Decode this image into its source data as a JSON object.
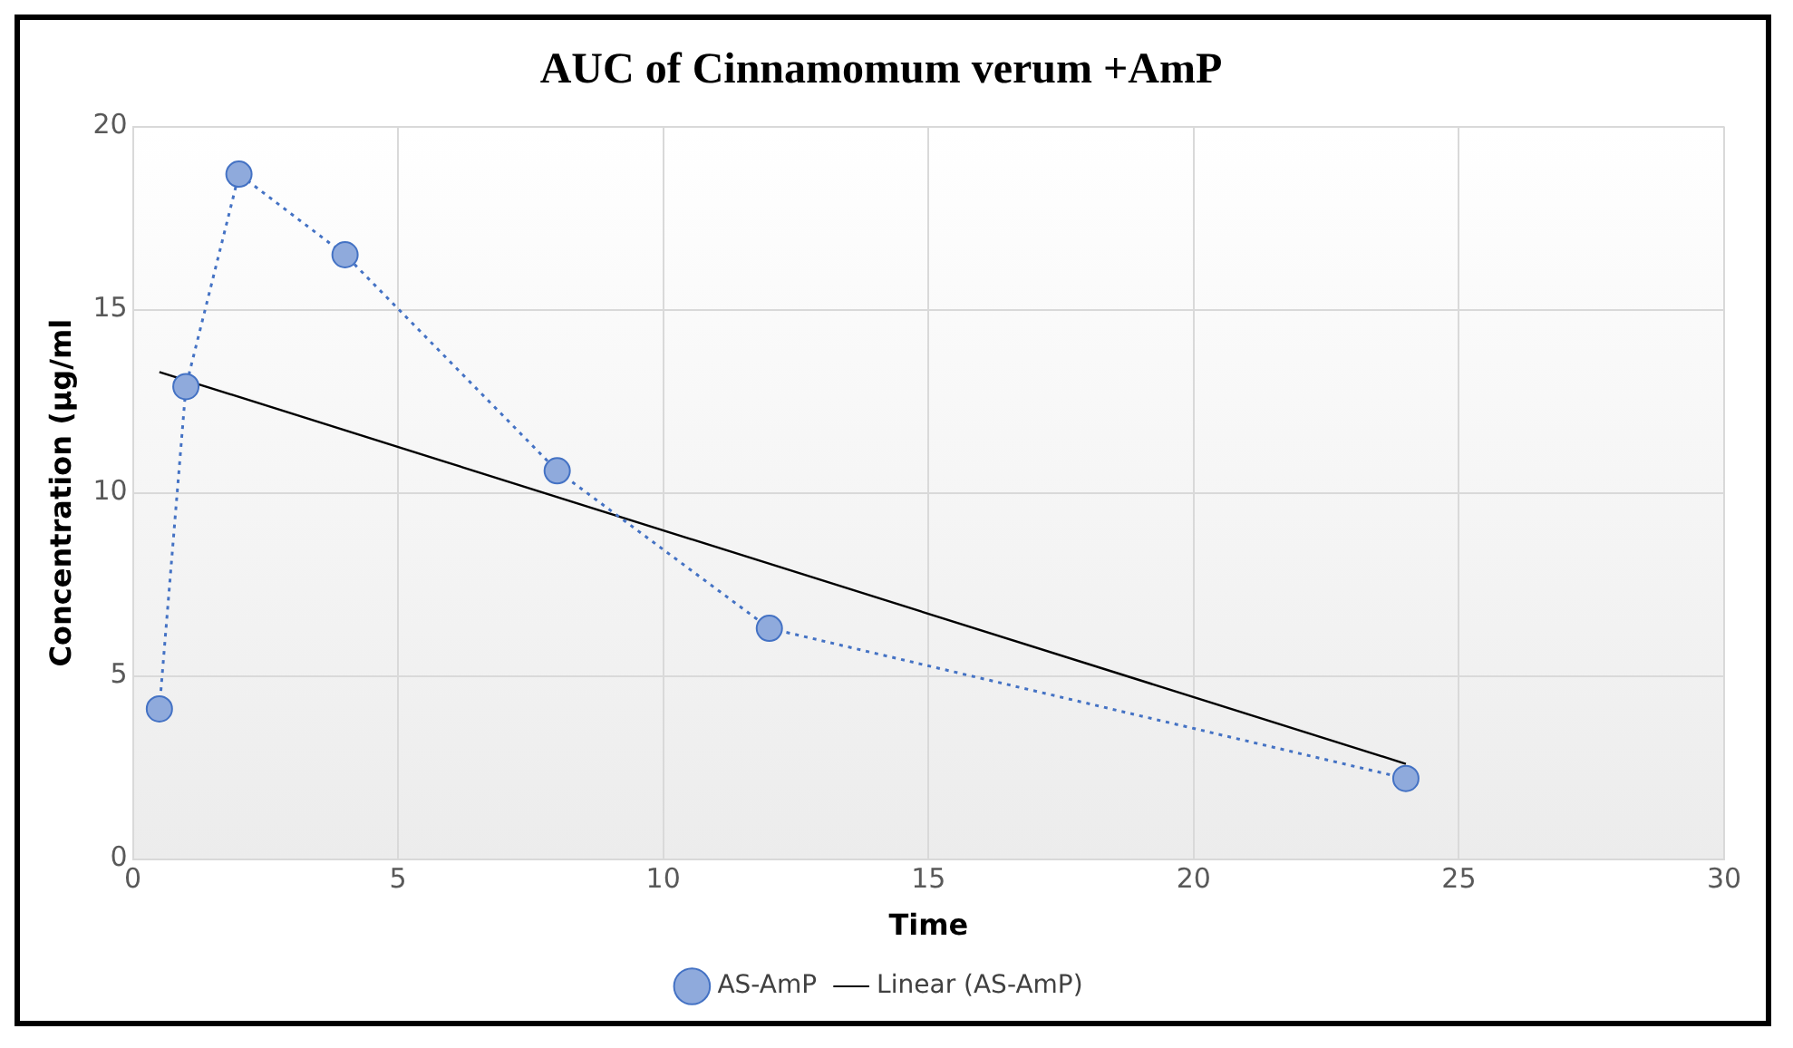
{
  "chart_data": {
    "type": "line",
    "title": "AUC of Cinnamomum verum +AmP",
    "xlabel": "Time",
    "ylabel": "Concentration (µg/ml",
    "xlim": [
      0,
      30
    ],
    "xticks": [
      0,
      5,
      10,
      15,
      20,
      25,
      30
    ],
    "ylim": [
      0,
      20
    ],
    "yticks": [
      0,
      5,
      10,
      15,
      20
    ],
    "grid": true,
    "legend": "bottom",
    "series": [
      {
        "name": "AS-AmP",
        "color": "#4472c4",
        "marker": "circle",
        "line_style": "dotted",
        "x": [
          0.5,
          1,
          2,
          4,
          8,
          12,
          24
        ],
        "values": [
          4.1,
          12.9,
          18.7,
          16.5,
          10.6,
          6.3,
          2.2
        ]
      },
      {
        "name": "Linear (AS-AmP)",
        "color": "#000000",
        "marker": "none",
        "line_style": "solid",
        "x": [
          0.5,
          24
        ],
        "values": [
          13.3,
          2.6
        ]
      }
    ]
  }
}
